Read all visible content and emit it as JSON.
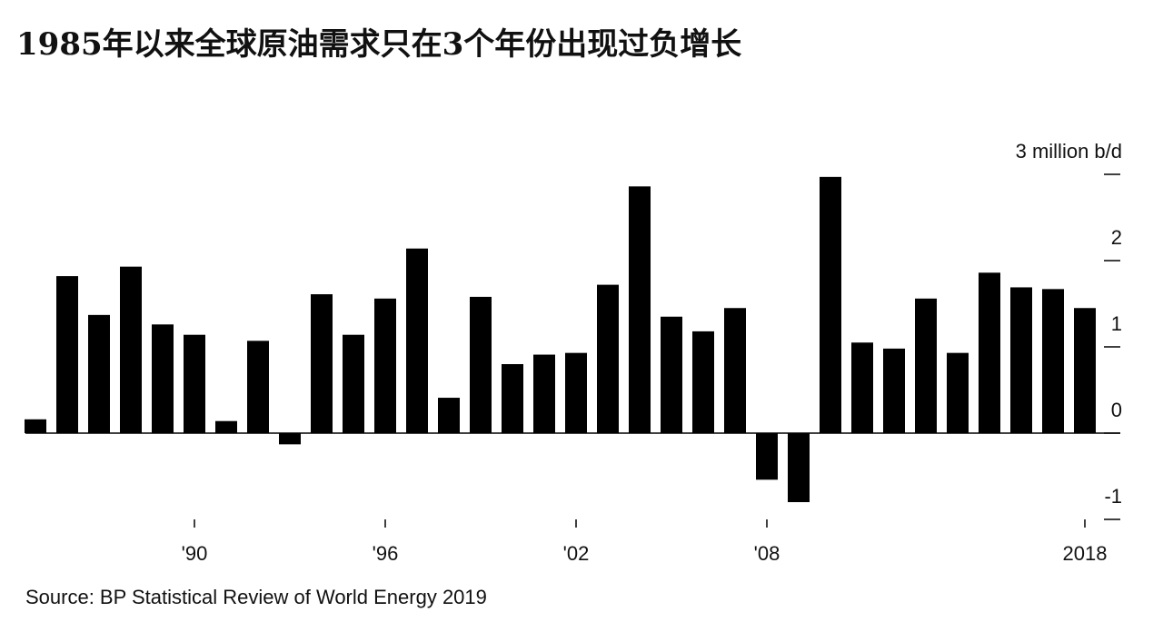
{
  "chart_data": {
    "type": "bar",
    "title": "1985年以来全球原油需求只在3个年份出现过负增长",
    "source": "Source: BP Statistical Review of World Energy 2019",
    "categories": [
      null,
      null,
      null,
      null,
      null,
      "'90",
      null,
      null,
      null,
      null,
      null,
      "'96",
      null,
      null,
      null,
      null,
      null,
      "'02",
      null,
      null,
      null,
      null,
      null,
      "'08",
      null,
      null,
      null,
      null,
      null,
      null,
      null,
      null,
      null,
      "2018"
    ],
    "values": [
      0.16,
      1.82,
      1.37,
      1.93,
      1.26,
      1.14,
      0.14,
      1.07,
      -0.13,
      1.61,
      1.14,
      1.56,
      2.14,
      0.41,
      1.58,
      0.8,
      0.91,
      0.93,
      1.72,
      2.86,
      1.35,
      1.18,
      1.45,
      -0.54,
      -0.8,
      2.97,
      1.05,
      0.98,
      1.56,
      0.93,
      1.86,
      1.69,
      1.67,
      1.45
    ],
    "color": "#000000",
    "ylim": [
      -1,
      3
    ],
    "yticks": [
      {
        "value": 3,
        "label": "3 million b/d"
      },
      2,
      1,
      0,
      -1
    ]
  }
}
